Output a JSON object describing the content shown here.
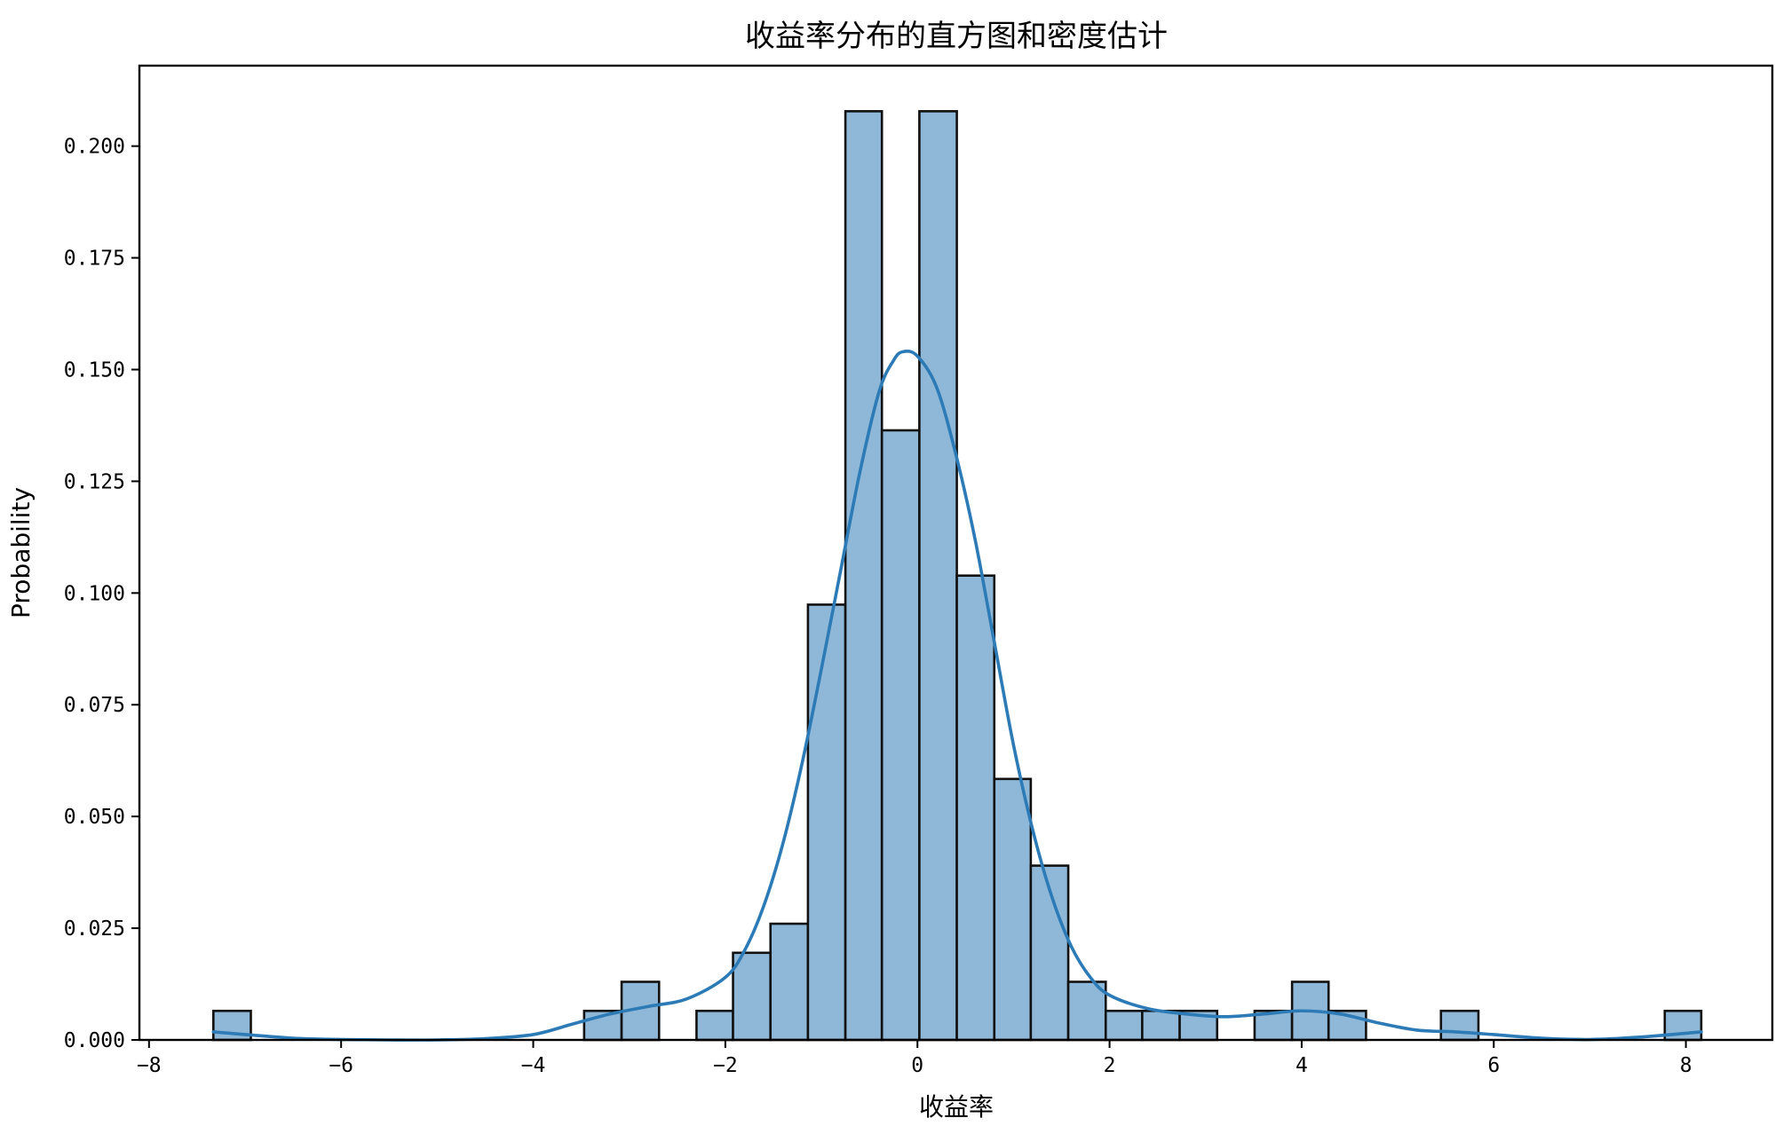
{
  "chart_data": {
    "type": "bar",
    "title": "收益率分布的直方图和密度估计",
    "xlabel": "收益率",
    "ylabel": "Probability",
    "xlim": [
      -8.1,
      8.9
    ],
    "ylim": [
      0,
      0.218
    ],
    "xticks": [
      -8,
      -6,
      -4,
      -2,
      0,
      2,
      4,
      6,
      8
    ],
    "xtick_labels": [
      "−8",
      "−6",
      "−4",
      "−2",
      "0",
      "2",
      "4",
      "6",
      "8"
    ],
    "yticks": [
      0.0,
      0.025,
      0.05,
      0.075,
      0.1,
      0.125,
      0.15,
      0.175,
      0.2
    ],
    "ytick_labels": [
      "0.000",
      "0.025",
      "0.050",
      "0.075",
      "0.100",
      "0.125",
      "0.150",
      "0.175",
      "0.200"
    ],
    "grid": false,
    "bins": [
      {
        "x0": -7.33,
        "x1": -6.94,
        "value": 0.0065
      },
      {
        "x0": -3.47,
        "x1": -3.08,
        "value": 0.0065
      },
      {
        "x0": -3.08,
        "x1": -2.69,
        "value": 0.013
      },
      {
        "x0": -2.3,
        "x1": -1.92,
        "value": 0.0065
      },
      {
        "x0": -1.92,
        "x1": -1.53,
        "value": 0.0195
      },
      {
        "x0": -1.53,
        "x1": -1.14,
        "value": 0.026
      },
      {
        "x0": -1.14,
        "x1": -0.75,
        "value": 0.0974
      },
      {
        "x0": -0.75,
        "x1": -0.37,
        "value": 0.2078
      },
      {
        "x0": -0.37,
        "x1": 0.02,
        "value": 0.1364
      },
      {
        "x0": 0.02,
        "x1": 0.41,
        "value": 0.2078
      },
      {
        "x0": 0.41,
        "x1": 0.8,
        "value": 0.1039
      },
      {
        "x0": 0.8,
        "x1": 1.18,
        "value": 0.0584
      },
      {
        "x0": 1.18,
        "x1": 1.57,
        "value": 0.039
      },
      {
        "x0": 1.57,
        "x1": 1.96,
        "value": 0.013
      },
      {
        "x0": 1.96,
        "x1": 2.34,
        "value": 0.0065
      },
      {
        "x0": 2.34,
        "x1": 2.73,
        "value": 0.0065
      },
      {
        "x0": 2.73,
        "x1": 3.12,
        "value": 0.0065
      },
      {
        "x0": 3.51,
        "x1": 3.9,
        "value": 0.0065
      },
      {
        "x0": 3.9,
        "x1": 4.28,
        "value": 0.013
      },
      {
        "x0": 4.28,
        "x1": 4.67,
        "value": 0.0065
      },
      {
        "x0": 5.45,
        "x1": 5.84,
        "value": 0.0065
      },
      {
        "x0": 7.78,
        "x1": 8.16,
        "value": 0.0065
      }
    ],
    "kde": {
      "x": [
        -7.33,
        -7.0,
        -6.5,
        -6.0,
        -5.5,
        -5.0,
        -4.5,
        -4.0,
        -3.6,
        -3.2,
        -2.8,
        -2.4,
        -2.0,
        -1.8,
        -1.6,
        -1.4,
        -1.2,
        -1.0,
        -0.8,
        -0.6,
        -0.4,
        -0.25,
        -0.15,
        0.0,
        0.2,
        0.4,
        0.6,
        0.8,
        1.0,
        1.2,
        1.4,
        1.6,
        1.8,
        2.0,
        2.4,
        2.8,
        3.2,
        3.6,
        4.0,
        4.4,
        4.8,
        5.2,
        5.6,
        6.0,
        6.5,
        7.0,
        7.5,
        8.16
      ],
      "y": [
        0.0018,
        0.0012,
        0.0004,
        0.0001,
        0.0,
        0.0,
        0.0003,
        0.0012,
        0.0035,
        0.0058,
        0.0075,
        0.0092,
        0.014,
        0.02,
        0.03,
        0.044,
        0.062,
        0.083,
        0.105,
        0.127,
        0.145,
        0.152,
        0.154,
        0.153,
        0.146,
        0.131,
        0.112,
        0.089,
        0.066,
        0.047,
        0.032,
        0.021,
        0.014,
        0.01,
        0.007,
        0.0058,
        0.0052,
        0.0058,
        0.0065,
        0.0058,
        0.0038,
        0.0022,
        0.0018,
        0.0012,
        0.0004,
        0.0001,
        0.0006,
        0.0018
      ]
    },
    "colors": {
      "bar_fill": "#8fb8d8",
      "bar_edge": "#111111",
      "kde_line": "#2c7bb6"
    }
  }
}
